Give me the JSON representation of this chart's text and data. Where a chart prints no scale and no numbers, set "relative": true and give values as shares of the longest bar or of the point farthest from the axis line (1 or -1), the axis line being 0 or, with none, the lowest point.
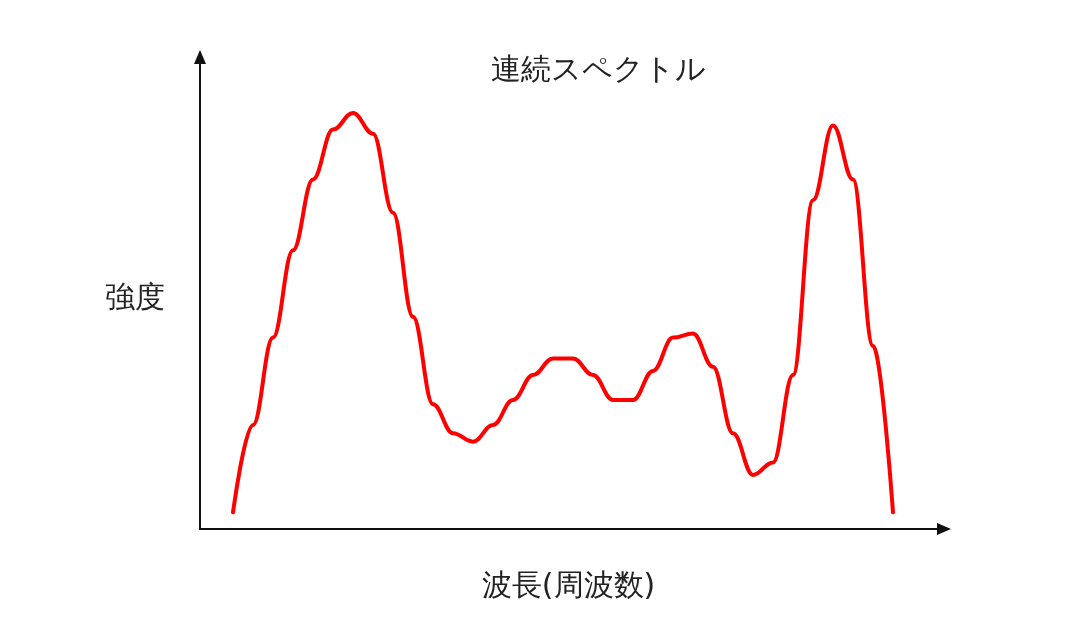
{
  "chart_data": {
    "type": "line",
    "title": "連続スペクトル",
    "xlabel": "波長(周波数)",
    "ylabel": "強度",
    "relative": true,
    "categories": [
      null,
      null,
      null,
      null,
      null,
      null,
      null,
      null,
      null,
      null,
      null,
      null,
      null,
      null,
      null,
      null,
      null,
      null,
      null,
      null,
      null,
      null,
      null,
      null,
      null,
      null,
      null,
      null,
      null,
      null,
      null,
      null,
      null,
      null
    ],
    "series": [
      {
        "color": "#ff0000",
        "values": [
          0.04,
          0.25,
          0.46,
          0.67,
          0.84,
          0.96,
          1,
          0.95,
          0.76,
          0.51,
          0.3,
          0.23,
          0.21,
          0.25,
          0.31,
          0.37,
          0.41,
          0.41,
          0.37,
          0.31,
          0.31,
          0.38,
          0.46,
          0.47,
          0.39,
          0.23,
          0.13,
          0.16,
          0.37,
          0.79,
          0.97,
          0.84,
          0.44,
          0.04
        ]
      }
    ],
    "grid": false,
    "marker": "none",
    "line_style": "solid"
  }
}
